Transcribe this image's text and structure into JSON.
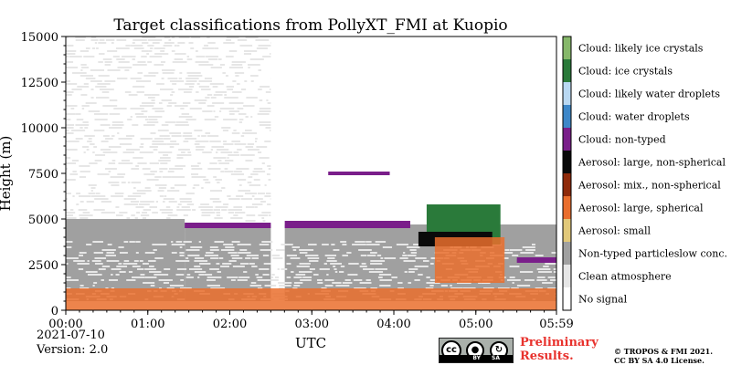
{
  "chart_data": {
    "type": "heatmap",
    "title": "Target classifications from PollyXT_FMI at Kuopio",
    "xlabel": "UTC",
    "ylabel": "Height (m)",
    "x_ticks": [
      "00:00",
      "01:00",
      "02:00",
      "03:00",
      "04:00",
      "05:00",
      "05:59"
    ],
    "y_ticks": [
      "0",
      "2500",
      "5000",
      "7500",
      "10000",
      "12500",
      "15000"
    ],
    "xlim_hours": [
      0,
      5.983
    ],
    "ylim": [
      0,
      15000
    ],
    "classes": [
      {
        "label": "No signal",
        "color": "#ffffff"
      },
      {
        "label": "Clean atmosphere",
        "color": "#e6e6e6"
      },
      {
        "label": "Non-typed particleslow conc.",
        "color": "#a0a0a0"
      },
      {
        "label": "Aerosol: small",
        "color": "#e2c97a"
      },
      {
        "label": "Aerosol: large, spherical",
        "color": "#ea6e2d"
      },
      {
        "label": "Aerosol: mix., non-spherical",
        "color": "#8f2a0a"
      },
      {
        "label": "Aerosol: large, non-spherical",
        "color": "#0a0a0a"
      },
      {
        "label": "Cloud: non-typed",
        "color": "#7a1e8a"
      },
      {
        "label": "Cloud: water droplets",
        "color": "#3d87c9"
      },
      {
        "label": "Cloud: likely water droplets",
        "color": "#b9d8f2"
      },
      {
        "label": "Cloud: ice crystals",
        "color": "#2a7a3a"
      },
      {
        "label": "Cloud: likely ice crystals",
        "color": "#86b86a"
      }
    ],
    "regions": [
      {
        "class": 1,
        "x": [
          0.0,
          2.5
        ],
        "y": [
          3800,
          15000
        ],
        "sparse": true
      },
      {
        "class": 2,
        "x": [
          0.0,
          1.45
        ],
        "y": [
          500,
          5000
        ]
      },
      {
        "class": 2,
        "x": [
          1.45,
          2.5
        ],
        "y": [
          500,
          4700
        ]
      },
      {
        "class": 2,
        "x": [
          2.67,
          5.983
        ],
        "y": [
          500,
          4700
        ]
      },
      {
        "class": 1,
        "x": [
          0.0,
          5.983
        ],
        "y": [
          500,
          3800
        ],
        "sparse": true
      },
      {
        "class": 4,
        "x": [
          0.0,
          5.983
        ],
        "y": [
          0,
          1200
        ]
      },
      {
        "class": 7,
        "x": [
          1.45,
          2.5
        ],
        "y": [
          4500,
          4800
        ]
      },
      {
        "class": 7,
        "x": [
          2.67,
          4.2
        ],
        "y": [
          4500,
          4900
        ]
      },
      {
        "class": 7,
        "x": [
          3.2,
          3.95
        ],
        "y": [
          7400,
          7600
        ]
      },
      {
        "class": 10,
        "x": [
          4.4,
          5.3
        ],
        "y": [
          3600,
          5800
        ]
      },
      {
        "class": 6,
        "x": [
          4.3,
          5.2
        ],
        "y": [
          3500,
          4300
        ]
      },
      {
        "class": 4,
        "x": [
          4.5,
          5.35
        ],
        "y": [
          1500,
          4000
        ]
      },
      {
        "class": 7,
        "x": [
          5.5,
          5.983
        ],
        "y": [
          2600,
          2900
        ]
      }
    ],
    "colorbar_position": "right"
  },
  "footer": {
    "date": "2021-07-10",
    "version": "Version: 2.0",
    "license_badge_left": "BY",
    "license_badge_right": "SA",
    "preliminary_line1": "Preliminary",
    "preliminary_line2": "Results.",
    "copyright_line1": "© TROPOS & FMI 2021.",
    "copyright_line2": "CC BY SA 4.0 License."
  }
}
